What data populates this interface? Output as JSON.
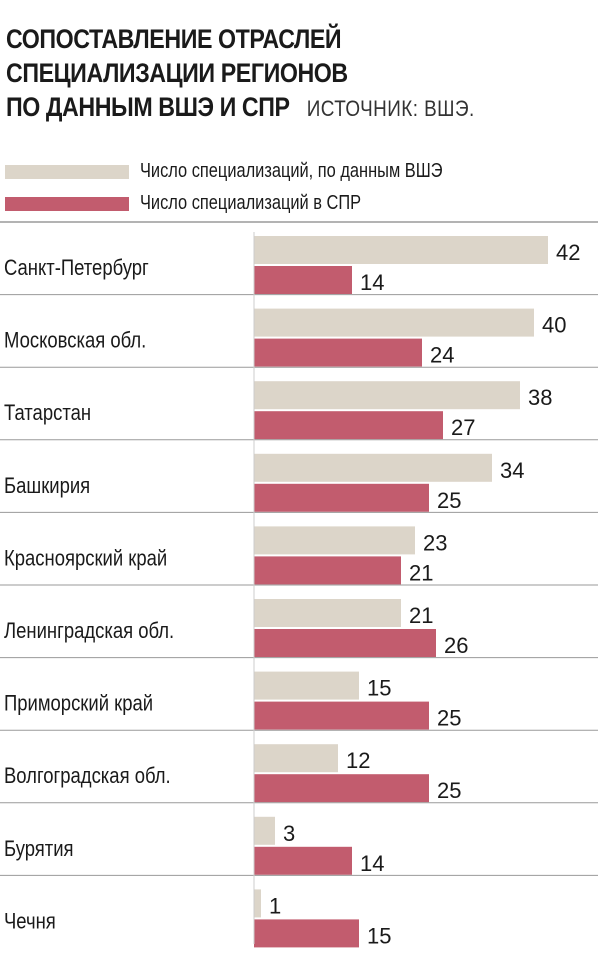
{
  "title": {
    "lines": [
      "СОПОСТАВЛЕНИЕ ОТРАСЛЕЙ",
      "СПЕЦИАЛИЗАЦИИ РЕГИОНОВ",
      "ПО ДАННЫМ ВШЭ И СПР"
    ],
    "source": "ИСТОЧНИК: ВШЭ."
  },
  "colors": {
    "series_hse": "#dcd5c9",
    "series_spr": "#c25c6e",
    "divider": "#9a9a9a"
  },
  "chart_data": {
    "type": "bar",
    "orientation": "horizontal",
    "categories": [
      "Санкт-Петербург",
      "Московская обл.",
      "Татарстан",
      "Башкирия",
      "Красноярский край",
      "Ленинградская обл.",
      "Приморский край",
      "Волгоградская обл.",
      "Бурятия",
      "Чечня"
    ],
    "series": [
      {
        "name": "Число специализаций, по данным ВШЭ",
        "values": [
          42,
          40,
          38,
          34,
          23,
          21,
          15,
          12,
          3,
          1
        ]
      },
      {
        "name": "Число специализаций в СПР",
        "values": [
          14,
          24,
          27,
          25,
          21,
          26,
          25,
          25,
          14,
          15
        ]
      }
    ],
    "legend": "top-left",
    "grid": false
  }
}
